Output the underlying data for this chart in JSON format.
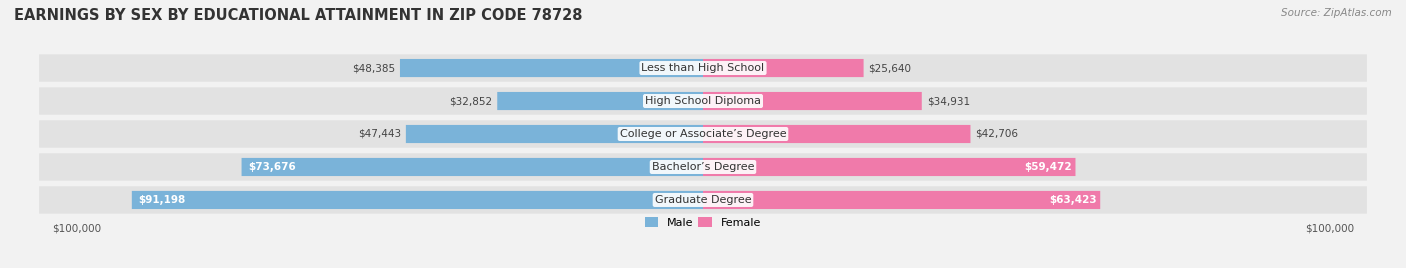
{
  "title": "EARNINGS BY SEX BY EDUCATIONAL ATTAINMENT IN ZIP CODE 78728",
  "source": "Source: ZipAtlas.com",
  "categories": [
    "Less than High School",
    "High School Diploma",
    "College or Associate’s Degree",
    "Bachelor’s Degree",
    "Graduate Degree"
  ],
  "male_values": [
    48385,
    32852,
    47443,
    73676,
    91198
  ],
  "female_values": [
    25640,
    34931,
    42706,
    59472,
    63423
  ],
  "male_color": "#7ab3d9",
  "female_color": "#f07aaa",
  "max_val": 100000,
  "bg_color": "#f2f2f2",
  "row_bg_color": "#e2e2e2",
  "title_fontsize": 10.5,
  "cat_fontsize": 8,
  "value_fontsize": 7.5,
  "source_fontsize": 7.5,
  "legend_fontsize": 8
}
